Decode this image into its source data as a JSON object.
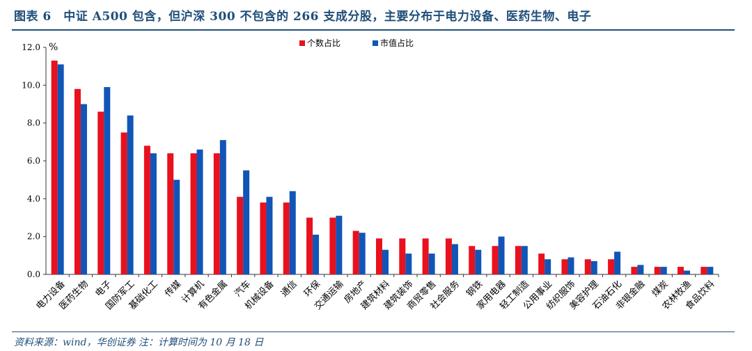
{
  "title": "图表 6　中证 A500 包含，但沪深 300 不包含的 266 支成分股，主要分布于电力设备、医药生物、电子",
  "source": "资料来源：wind，华创证券 注：计算时间为 10 月 18 日",
  "colors": {
    "title": "#1f4e79",
    "series1": "#e8111e",
    "series2": "#1155b7",
    "axis": "#333333"
  },
  "chart_data": {
    "type": "bar",
    "ylabel": "%",
    "ylim": [
      0,
      12
    ],
    "yticks": [
      "0.0",
      "2.0",
      "4.0",
      "6.0",
      "8.0",
      "10.0",
      "12.0"
    ],
    "grid": false,
    "legend_position": "top-right",
    "categories": [
      "电力设备",
      "医药生物",
      "电子",
      "国防军工",
      "基础化工",
      "传媒",
      "计算机",
      "有色金属",
      "汽车",
      "机械设备",
      "通信",
      "环保",
      "交通运输",
      "房地产",
      "建筑材料",
      "建筑装饰",
      "商贸零售",
      "社会服务",
      "钢铁",
      "家用电器",
      "轻工制造",
      "公用事业",
      "纺织服饰",
      "美容护理",
      "石油石化",
      "非银金融",
      "煤炭",
      "农林牧渔",
      "食品饮料"
    ],
    "series": [
      {
        "name": "个数占比",
        "values": [
          11.3,
          9.8,
          8.6,
          7.5,
          6.8,
          6.4,
          6.4,
          6.4,
          4.1,
          3.8,
          3.8,
          3.0,
          3.0,
          2.3,
          1.9,
          1.9,
          1.9,
          1.9,
          1.5,
          1.5,
          1.5,
          1.1,
          0.8,
          0.8,
          0.8,
          0.4,
          0.4,
          0.4,
          0.4
        ]
      },
      {
        "name": "市值占比",
        "values": [
          11.1,
          9.0,
          9.9,
          8.4,
          6.4,
          5.0,
          6.6,
          7.1,
          5.5,
          4.1,
          4.4,
          2.1,
          3.1,
          2.2,
          1.3,
          1.1,
          1.1,
          1.6,
          1.3,
          2.0,
          1.5,
          0.8,
          0.9,
          0.7,
          1.2,
          0.5,
          0.4,
          0.2,
          0.4
        ]
      }
    ]
  }
}
